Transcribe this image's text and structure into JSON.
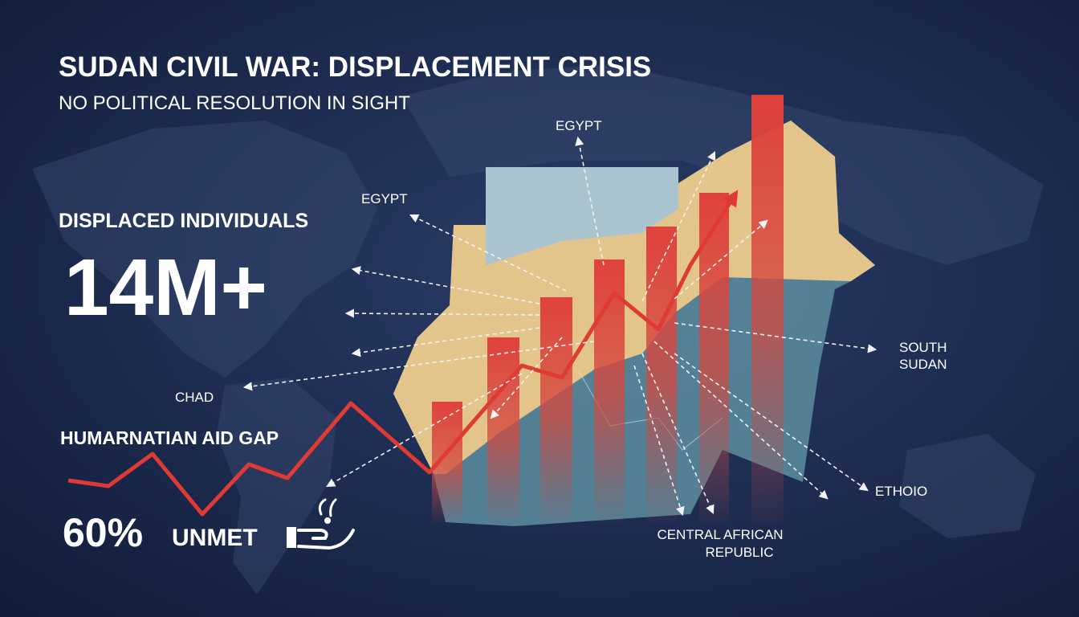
{
  "header": {
    "title": "SUDAN CIVIL WAR: DISPLACEMENT CRISIS",
    "subtitle": "NO POLITICAL RESOLUTION IN SIGHT"
  },
  "stats": {
    "displaced_label": "DISPLACED INDIVIDUALS",
    "displaced_value": "14M+",
    "aid_label": "HUMARNATIAN AID GAP",
    "aid_value": "60%",
    "aid_unit": "UNMET"
  },
  "map_labels": {
    "egypt_top": "EGYPT",
    "egypt_left": "EGYPT",
    "chad": "CHAD",
    "south_sudan": [
      "SOUTH",
      "SUDAN"
    ],
    "ethiopia": "ETHOIO",
    "car": [
      "CENTRAL AFRICAN",
      "REPUBLIC"
    ]
  }
}
